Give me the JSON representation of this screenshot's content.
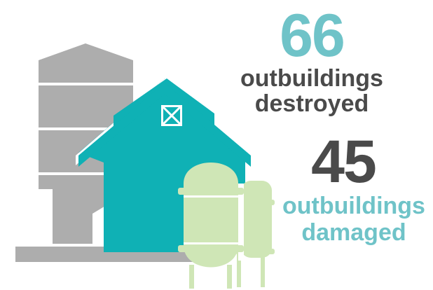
{
  "colors": {
    "teal": "#0fb1b5",
    "dark_gray": "#4a4a4a",
    "light_teal": "#6fc3c8",
    "silo_gray": "#adadad",
    "tank_green": "#cfe6b6"
  },
  "icons": [
    "silo-icon",
    "barn-icon",
    "propane-tank-icon"
  ],
  "stats": {
    "destroyed": {
      "number": "66",
      "label_line1": "outbuildings",
      "label_line2": "destroyed"
    },
    "damaged": {
      "number": "45",
      "label_line1": "outbuildings",
      "label_line2": "damaged"
    }
  }
}
